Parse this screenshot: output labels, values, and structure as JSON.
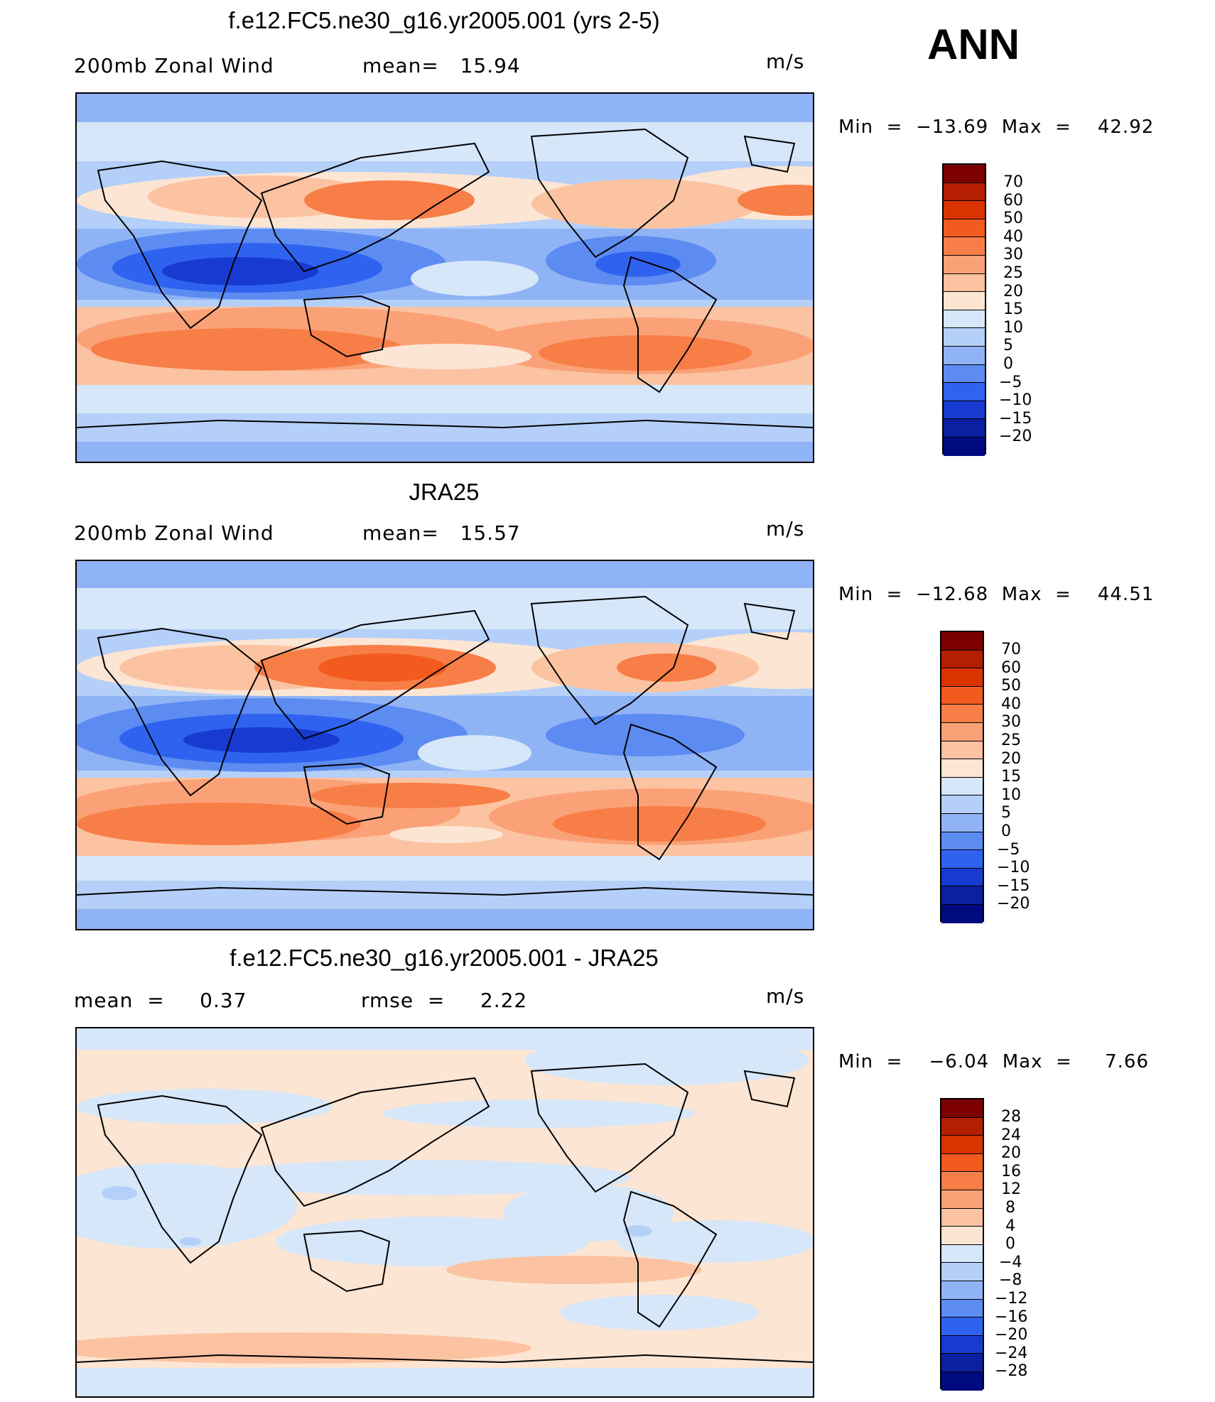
{
  "season": "ANN",
  "units": "m/s",
  "panels": [
    {
      "title": "f.e12.FC5.ne30_g16.yr2005.001 (yrs 2-5)",
      "left_label": "200mb Zonal Wind",
      "center_label": "mean=   15.94",
      "right_label": "m/s",
      "min_max": "Min  =  −13.69  Max  =    42.92",
      "colorbar": {
        "levels": [
          "70",
          "60",
          "50",
          "40",
          "30",
          "25",
          "20",
          "15",
          "10",
          "5",
          "0",
          "−5",
          "−10",
          "−15",
          "−20"
        ],
        "colors": [
          "#7d0000",
          "#b31f00",
          "#d93300",
          "#f25a1e",
          "#f77f47",
          "#fba178",
          "#fcc3a3",
          "#fde5d3",
          "#d6e7fa",
          "#b4d0f8",
          "#8fb3f5",
          "#5c8cf2",
          "#2f63ef",
          "#173ad0",
          "#0a20a0",
          "#000a80"
        ]
      },
      "mean_value": 15.94,
      "min": -13.69,
      "max": 42.92
    },
    {
      "title": "JRA25",
      "left_label": "200mb Zonal Wind",
      "center_label": "mean=   15.57",
      "right_label": "m/s",
      "min_max": "Min  =  −12.68  Max  =    44.51",
      "colorbar": {
        "levels": [
          "70",
          "60",
          "50",
          "40",
          "30",
          "25",
          "20",
          "15",
          "10",
          "5",
          "0",
          "−5",
          "−10",
          "−15",
          "−20"
        ],
        "colors": [
          "#7d0000",
          "#b31f00",
          "#d93300",
          "#f25a1e",
          "#f77f47",
          "#fba178",
          "#fcc3a3",
          "#fde5d3",
          "#d6e7fa",
          "#b4d0f8",
          "#8fb3f5",
          "#5c8cf2",
          "#2f63ef",
          "#173ad0",
          "#0a20a0",
          "#000a80"
        ]
      },
      "mean_value": 15.57,
      "min": -12.68,
      "max": 44.51
    },
    {
      "title": "f.e12.FC5.ne30_g16.yr2005.001 - JRA25",
      "left_label": "mean  =     0.37",
      "center_label": "rmse  =     2.22",
      "right_label": "m/s",
      "min_max": "Min  =    −6.04  Max  =     7.66",
      "colorbar": {
        "levels": [
          "28",
          "24",
          "20",
          "16",
          "12",
          "8",
          "4",
          "0",
          "−4",
          "−8",
          "−12",
          "−16",
          "−20",
          "−24",
          "−28"
        ],
        "colors": [
          "#7d0000",
          "#b31f00",
          "#d93300",
          "#f25a1e",
          "#f77f47",
          "#fba178",
          "#fcc3a3",
          "#fde5d3",
          "#d6e7fa",
          "#b4d0f8",
          "#8fb3f5",
          "#5c8cf2",
          "#2f63ef",
          "#173ad0",
          "#0a20a0",
          "#000a80"
        ]
      },
      "mean_value": 0.37,
      "rmse": 2.22,
      "min": -6.04,
      "max": 7.66
    }
  ]
}
